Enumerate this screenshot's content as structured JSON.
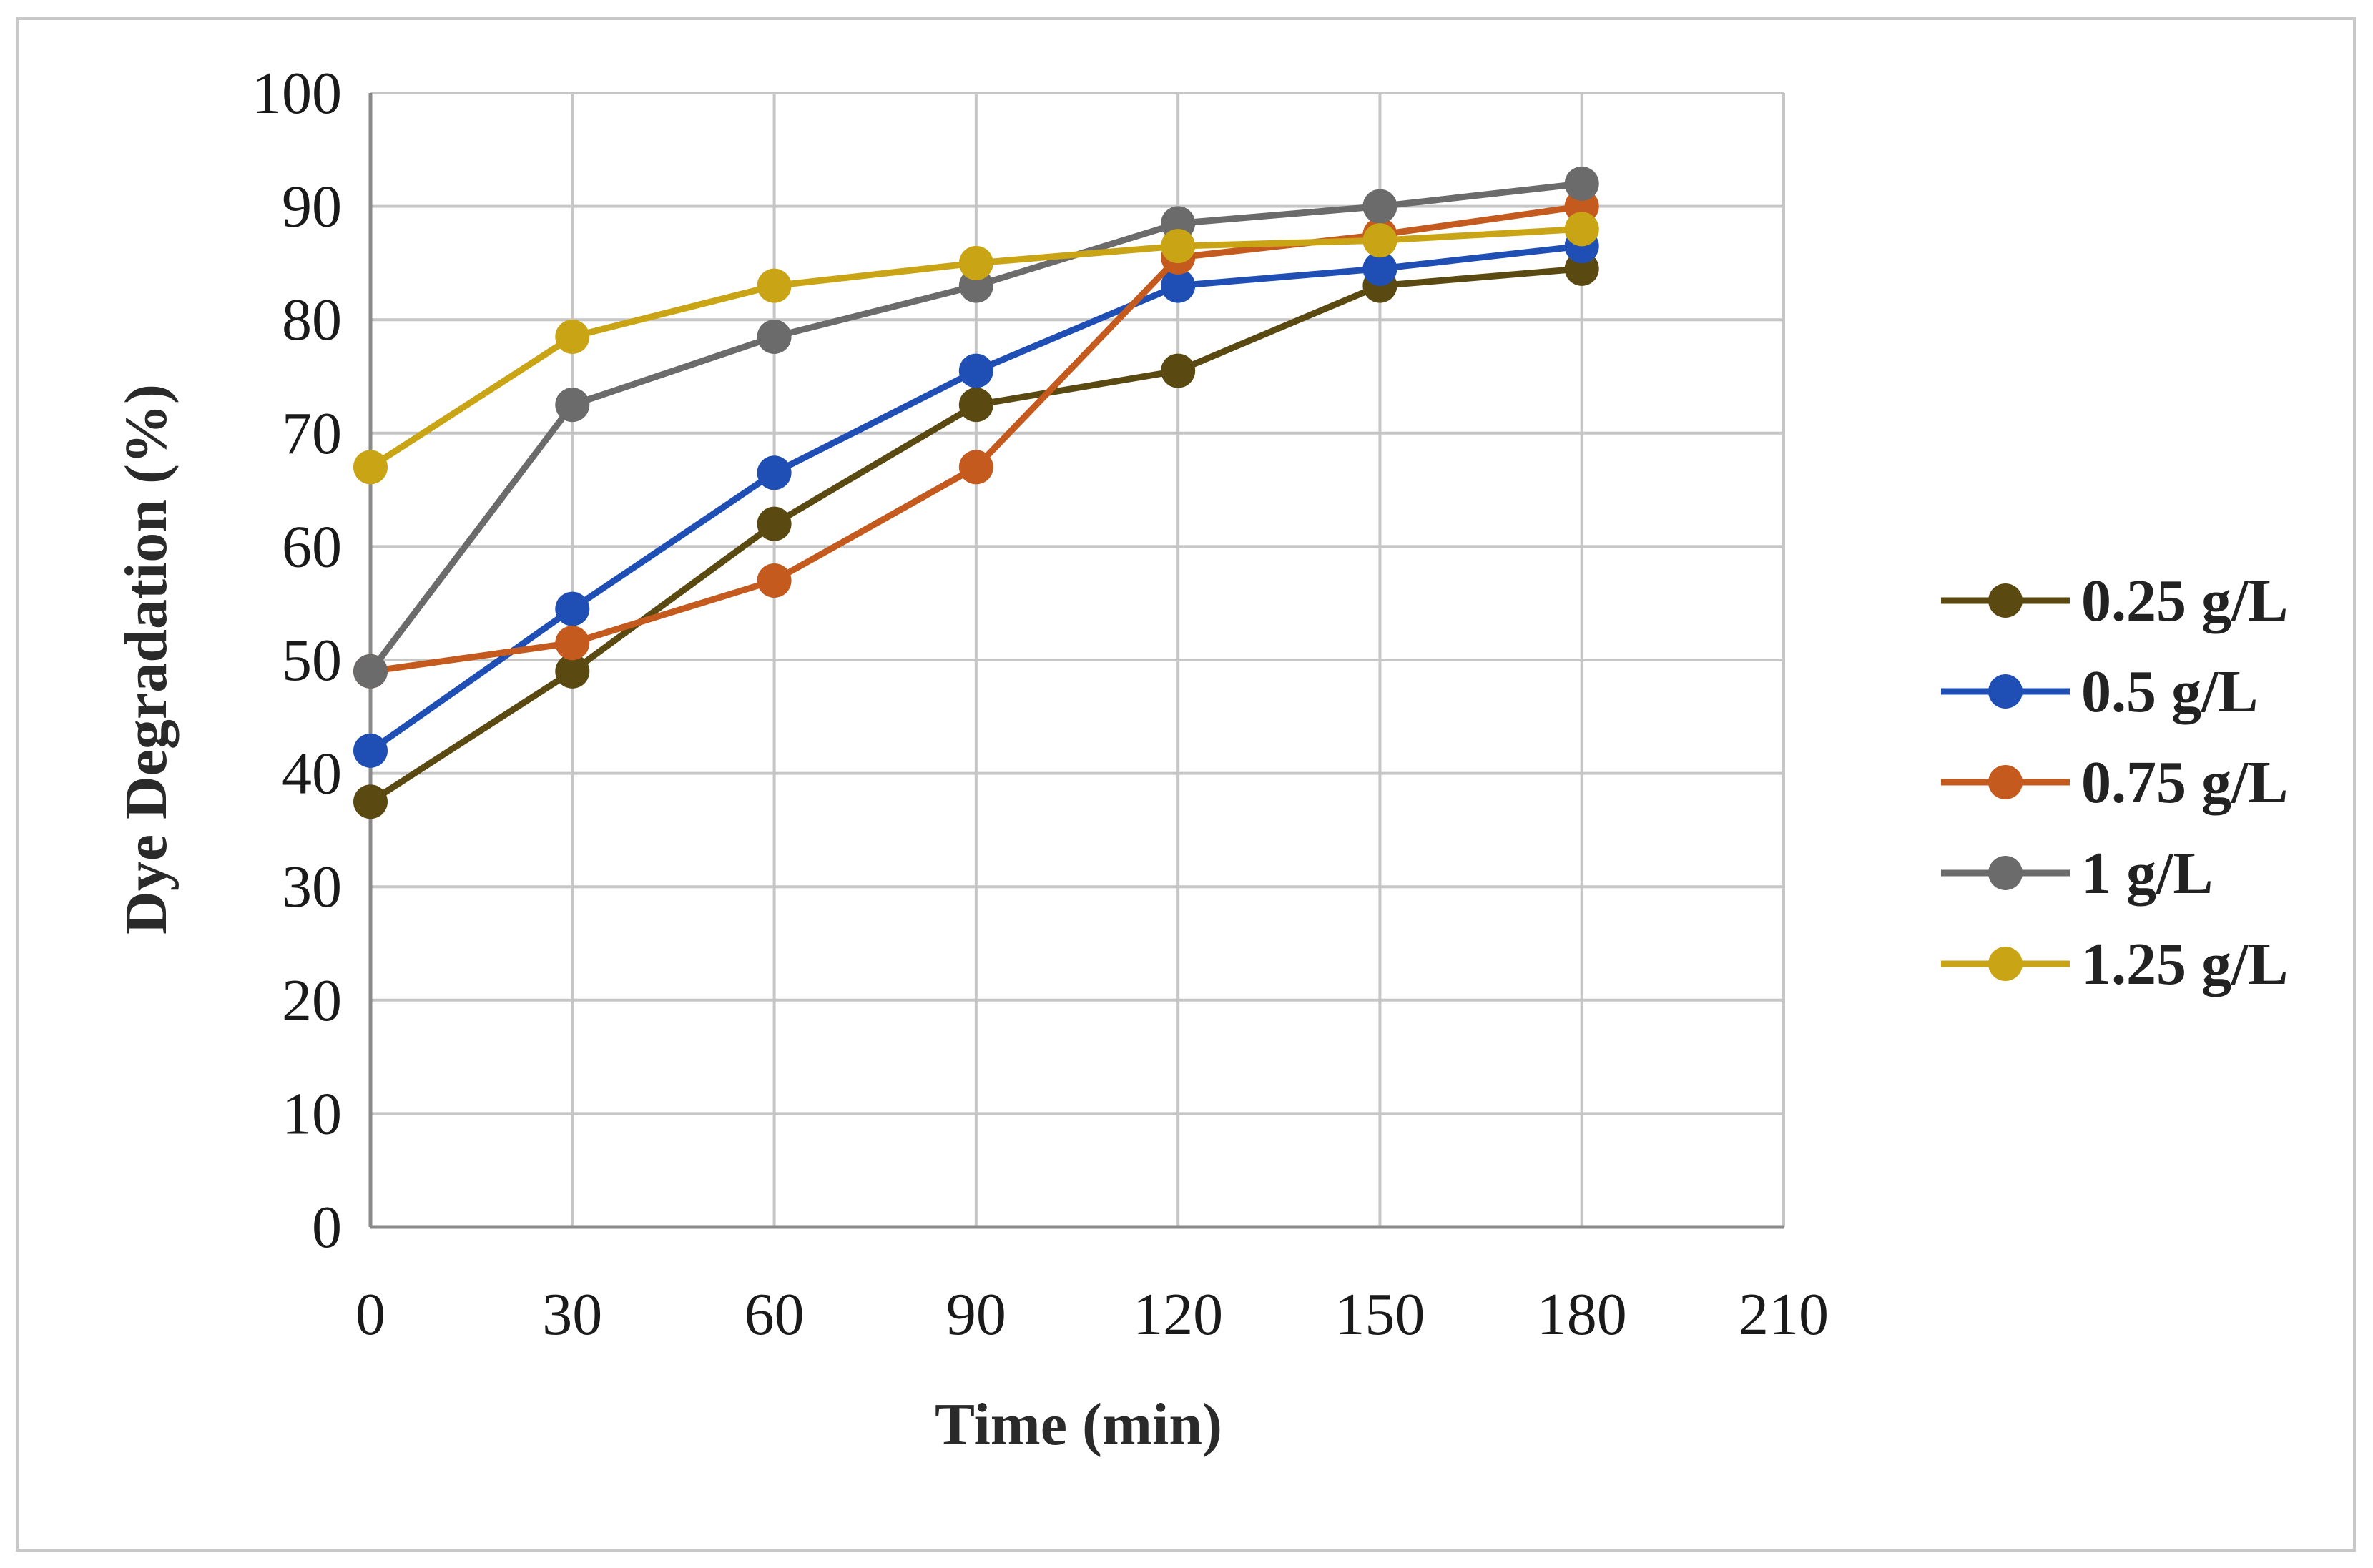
{
  "chart_data": {
    "type": "line",
    "title": "",
    "xlabel": "Time (min)",
    "ylabel": "Dye Degradation (%)",
    "xlim": [
      0,
      210
    ],
    "ylim": [
      0,
      100
    ],
    "x_ticks": [
      0,
      30,
      60,
      90,
      120,
      150,
      180,
      210
    ],
    "y_ticks": [
      0,
      10,
      20,
      30,
      40,
      50,
      60,
      70,
      80,
      90,
      100
    ],
    "grid": true,
    "legend_position": "right",
    "x": [
      0,
      30,
      60,
      90,
      120,
      150,
      180
    ],
    "series": [
      {
        "name": "0.25 g/L",
        "color": "#5a4a12",
        "values": [
          37.5,
          49,
          62,
          72.5,
          75.5,
          83,
          84.5
        ]
      },
      {
        "name": "0.5 g/L",
        "color": "#1f4fb5",
        "values": [
          42,
          54.5,
          66.5,
          75.5,
          83,
          84.5,
          86.5
        ]
      },
      {
        "name": "0.75 g/L",
        "color": "#c45a1e",
        "values": [
          49,
          51.5,
          57,
          67,
          85.5,
          87.5,
          90
        ]
      },
      {
        "name": "1 g/L",
        "color": "#6b6b6b",
        "values": [
          49,
          72.5,
          78.5,
          83,
          88.5,
          90,
          92
        ]
      },
      {
        "name": "1.25 g/L",
        "color": "#c9a516",
        "values": [
          67,
          78.5,
          83,
          85,
          86.5,
          87,
          88
        ]
      }
    ]
  }
}
